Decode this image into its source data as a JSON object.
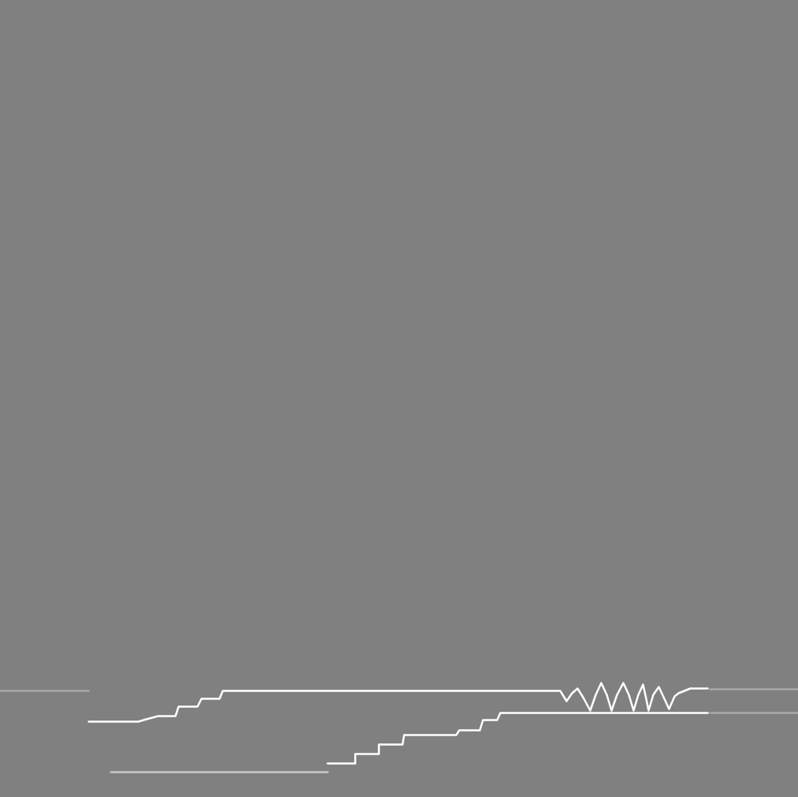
{
  "chart_data": {
    "type": "line",
    "xlim": [
      0,
      1012
    ],
    "ylim": [
      0,
      1010
    ],
    "tick_labels": false,
    "grid": false,
    "series": [
      {
        "color": "#ffffff",
        "x": [
          112,
          175,
          185,
          200,
          222,
          226,
          250,
          255,
          278,
          282,
          710,
          718,
          725,
          732,
          740,
          748,
          755,
          762,
          769,
          775,
          782,
          790,
          797,
          803,
          809,
          815,
          819,
          822,
          828,
          835,
          842,
          848,
          855,
          860,
          875,
          897
        ],
        "values": [
          96,
          96,
          99,
          103,
          103,
          115,
          115,
          125,
          125,
          135,
          135,
          122,
          132,
          138,
          125,
          110,
          130,
          145,
          130,
          110,
          130,
          145,
          130,
          110,
          130,
          143,
          125,
          110,
          130,
          140,
          125,
          112,
          128,
          132,
          138,
          138
        ]
      },
      {
        "color": "#ffffff",
        "x": [
          415,
          450,
          450,
          480,
          480,
          510,
          512,
          578,
          582,
          608,
          612,
          630,
          634,
          897
        ],
        "values": [
          43,
          43,
          55,
          55,
          67,
          67,
          79,
          79,
          85,
          85,
          98,
          98,
          107,
          107
        ]
      },
      {
        "color": "#c8c8c8",
        "x": [
          140,
          415
        ],
        "values": [
          32,
          32
        ]
      },
      {
        "color": "#a8a8a8",
        "x": [
          0,
          112
        ],
        "values": [
          135,
          135
        ]
      },
      {
        "color": "#a8a8a8",
        "x": [
          900,
          1012
        ],
        "values": [
          137,
          137
        ]
      },
      {
        "color": "#a8a8a8",
        "x": [
          900,
          1012
        ],
        "values": [
          107,
          107
        ]
      }
    ]
  }
}
